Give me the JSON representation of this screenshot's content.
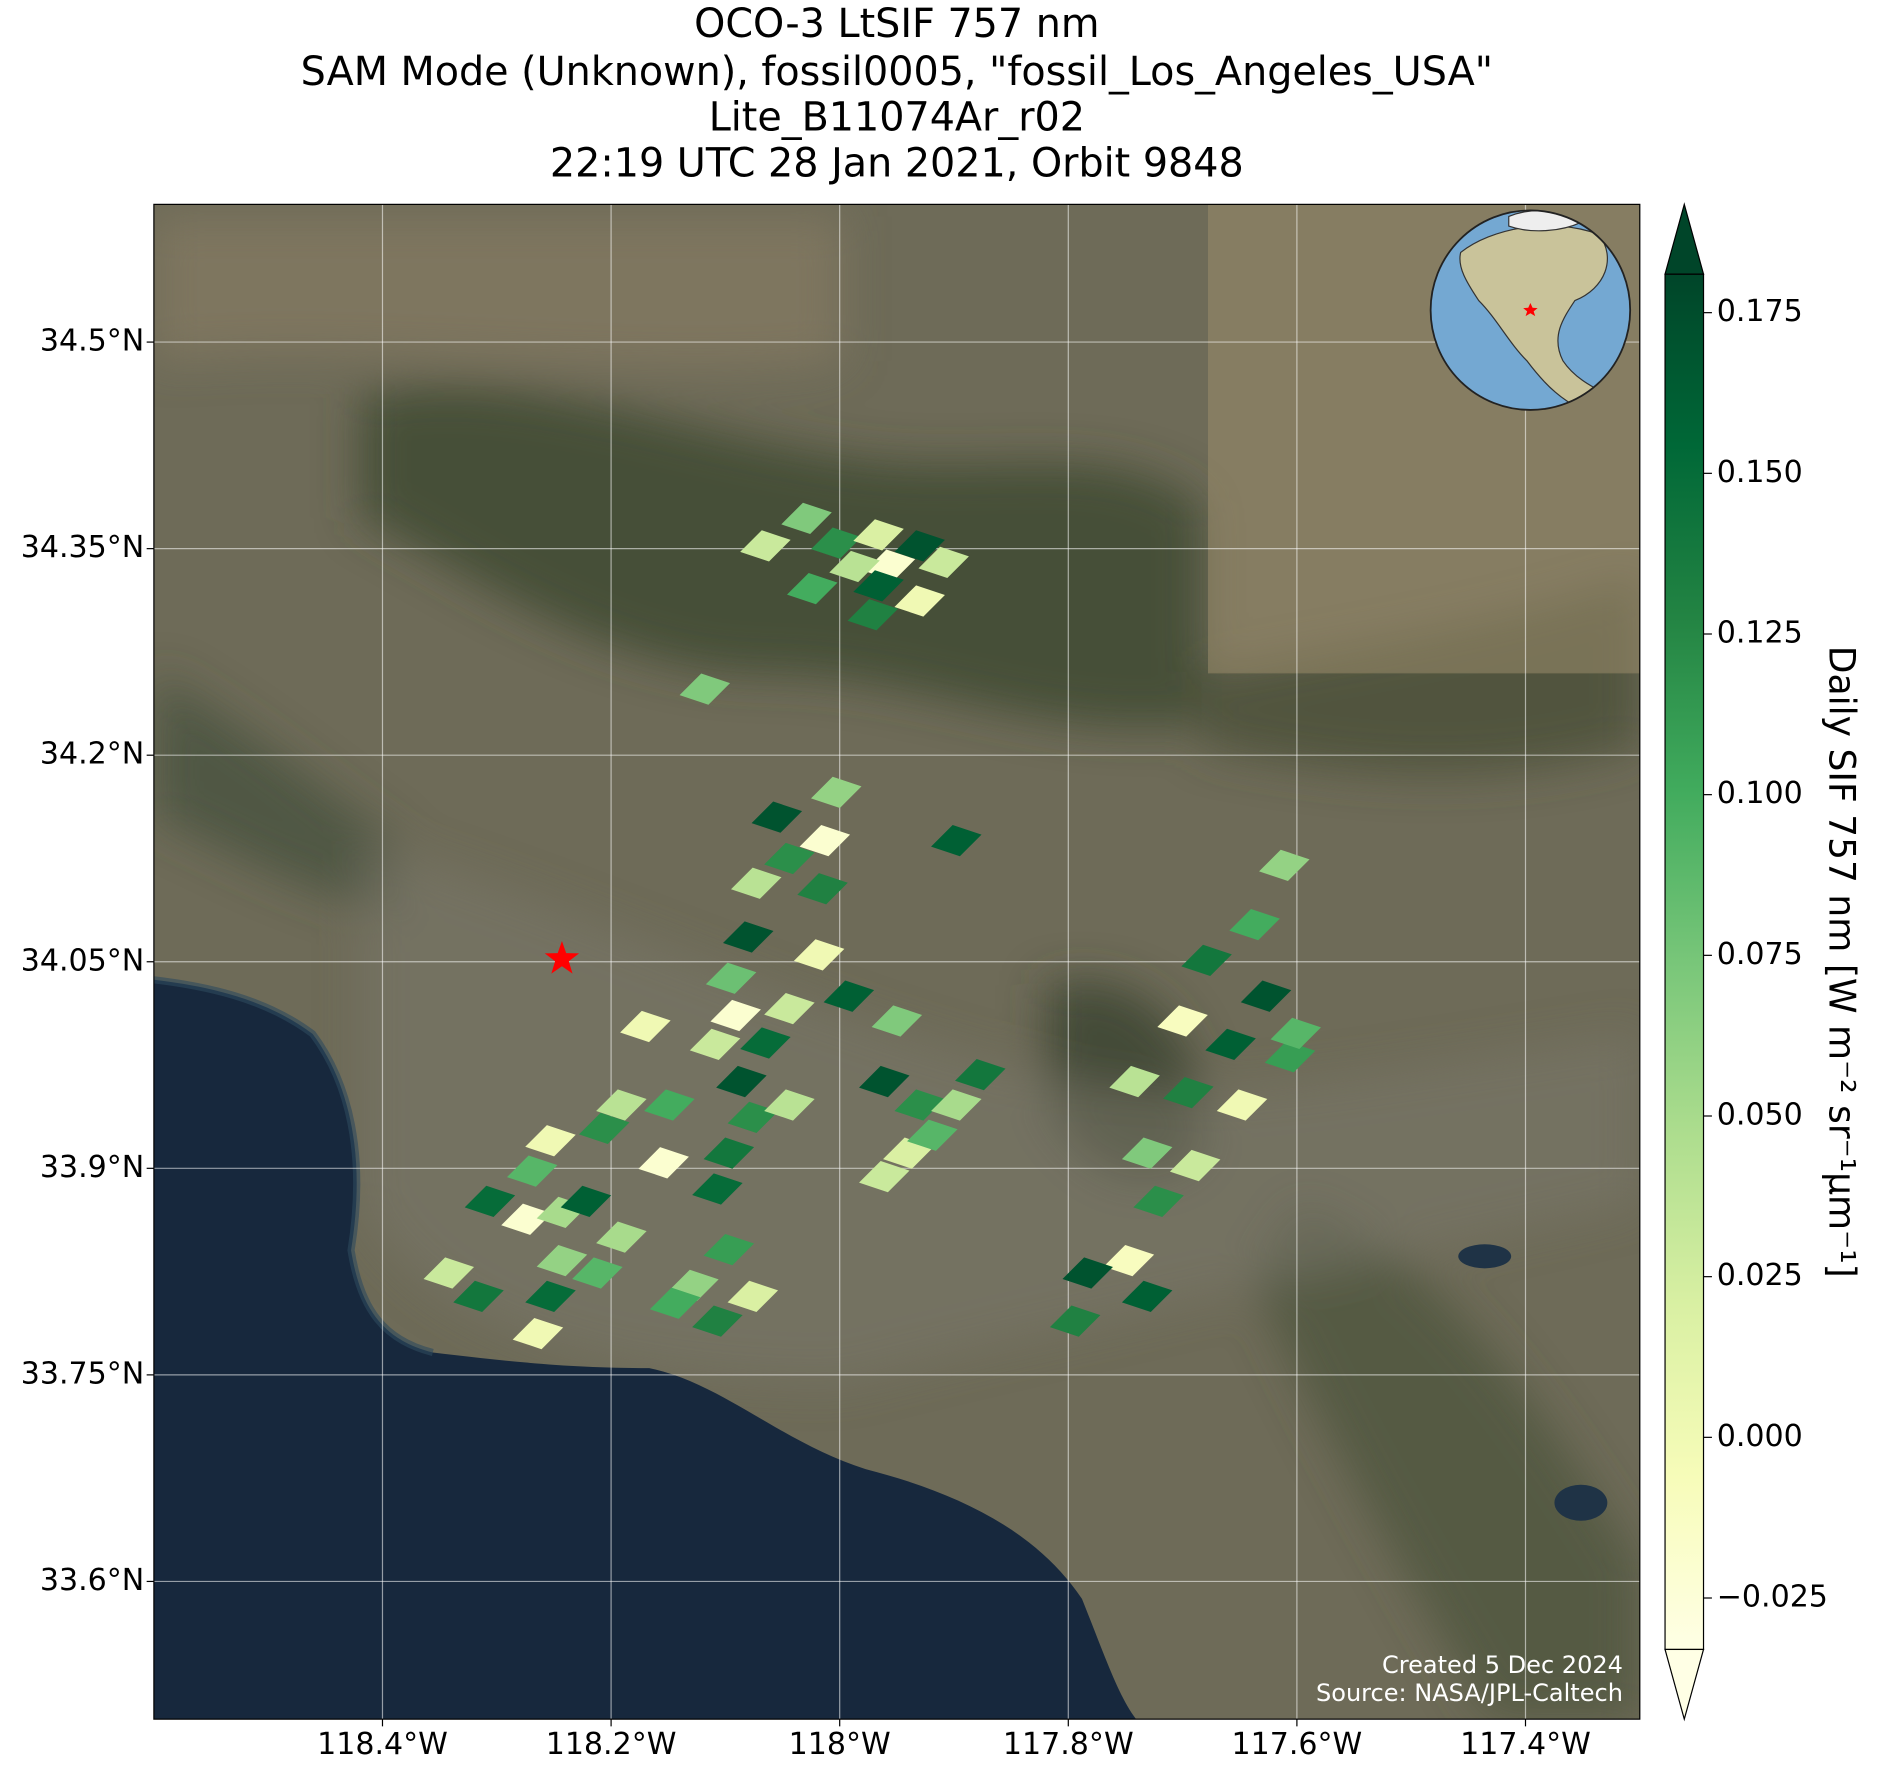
{
  "chart_data": {
    "type": "map",
    "title": [
      "OCO-3 LtSIF 757 nm",
      "SAM Mode (Unknown), fossil0005, \"fossil_Los_Angeles_USA\"",
      "Lite_B11074Ar_r02",
      "22:19 UTC 28 Jan 2021, Orbit 9848"
    ],
    "xlim": [
      -118.6,
      -117.3
    ],
    "xticks": [
      {
        "value": -118.4,
        "label": "118.4°W"
      },
      {
        "value": -118.2,
        "label": "118.2°W"
      },
      {
        "value": -118.0,
        "label": "118°W"
      },
      {
        "value": -117.8,
        "label": "117.8°W"
      },
      {
        "value": -117.6,
        "label": "117.6°W"
      },
      {
        "value": -117.4,
        "label": "117.4°W"
      }
    ],
    "ylim": [
      33.5,
      34.6
    ],
    "yticks": [
      {
        "value": 33.6,
        "label": "33.6°N"
      },
      {
        "value": 33.75,
        "label": "33.75°N"
      },
      {
        "value": 33.9,
        "label": "33.9°N"
      },
      {
        "value": 34.05,
        "label": "34.05°N"
      },
      {
        "value": 34.2,
        "label": "34.2°N"
      },
      {
        "value": 34.35,
        "label": "34.35°N"
      },
      {
        "value": 34.5,
        "label": "34.5°N"
      }
    ],
    "grid": true,
    "site": {
      "lon": -118.243,
      "lat": 34.052,
      "color": "#ff0000"
    },
    "colorbar": {
      "label": "Daily SIF 757 nm [W m⁻² sr⁻¹µm⁻¹]",
      "clim": [
        -0.033,
        0.181
      ],
      "ticks": [
        {
          "value": -0.025,
          "label": "−0.025"
        },
        {
          "value": 0.0,
          "label": "0.000"
        },
        0.025,
        {
          "value": 0.05,
          "label": "0.050"
        },
        0.075,
        {
          "value": 0.1,
          "label": "0.100"
        },
        0.125,
        {
          "value": 0.15,
          "label": "0.150"
        },
        0.175
      ],
      "cmap": [
        "#ffffe5",
        "#f7fcb9",
        "#d9f0a3",
        "#addd8e",
        "#78c679",
        "#41ab5d",
        "#238443",
        "#006837",
        "#004529"
      ],
      "extend": "both"
    },
    "cells": {
      "lon": [
        -118.065,
        -118.029,
        -118.003,
        -117.966,
        -117.93,
        -117.956,
        -117.909,
        -118.024,
        -117.966,
        -117.93,
        -117.971,
        -117.987,
        -118.118,
        -118.003,
        -118.055,
        -118.013,
        -118.044,
        -118.073,
        -118.015,
        -118.08,
        -118.095,
        -118.018,
        -117.992,
        -118.091,
        -118.044,
        -118.109,
        -118.065,
        -117.898,
        -117.611,
        -117.637,
        -117.679,
        -117.627,
        -117.7,
        -117.658,
        -117.606,
        -117.742,
        -117.695,
        -117.648,
        -117.731,
        -117.689,
        -117.601,
        -117.721,
        -117.747,
        -117.731,
        -117.783,
        -117.794,
        -118.17,
        -118.191,
        -118.149,
        -118.206,
        -118.154,
        -118.253,
        -118.269,
        -118.306,
        -118.274,
        -118.243,
        -118.222,
        -118.191,
        -118.243,
        -118.212,
        -118.253,
        -118.264,
        -118.342,
        -118.316,
        -118.107,
        -118.097,
        -118.128,
        -118.107,
        -118.076,
        -118.144,
        -118.086,
        -118.076,
        -118.044,
        -118.097,
        -117.95,
        -117.961,
        -117.93,
        -117.898,
        -117.877,
        -117.94,
        -117.961,
        -117.919
      ],
      "lat": [
        34.352,
        34.372,
        34.354,
        34.36,
        34.352,
        34.338,
        34.34,
        34.321,
        34.323,
        34.312,
        34.302,
        34.337,
        34.248,
        34.173,
        34.155,
        34.138,
        34.125,
        34.107,
        34.103,
        34.068,
        34.038,
        34.055,
        34.025,
        34.011,
        34.016,
        33.99,
        33.991,
        34.138,
        34.12,
        34.077,
        34.051,
        34.025,
        34.007,
        33.99,
        33.981,
        33.963,
        33.955,
        33.946,
        33.911,
        33.902,
        33.998,
        33.876,
        33.833,
        33.807,
        33.824,
        33.789,
        34.003,
        33.946,
        33.946,
        33.929,
        33.904,
        33.92,
        33.898,
        33.876,
        33.863,
        33.868,
        33.876,
        33.85,
        33.833,
        33.824,
        33.807,
        33.78,
        33.824,
        33.807,
        33.885,
        33.841,
        33.815,
        33.789,
        33.807,
        33.802,
        33.963,
        33.937,
        33.946,
        33.911,
        34.007,
        33.963,
        33.946,
        33.946,
        33.968,
        33.911,
        33.894,
        33.924
      ],
      "values": [
        0.03,
        0.07,
        0.12,
        0.02,
        0.17,
        -0.02,
        0.03,
        0.1,
        0.16,
        0.0,
        0.13,
        0.04,
        0.07,
        0.06,
        0.17,
        -0.02,
        0.12,
        0.04,
        0.13,
        0.17,
        0.08,
        0.0,
        0.16,
        -0.02,
        0.03,
        0.03,
        0.15,
        0.16,
        0.06,
        0.1,
        0.14,
        0.17,
        -0.01,
        0.16,
        0.11,
        0.04,
        0.13,
        0.0,
        0.07,
        0.03,
        0.09,
        0.12,
        -0.01,
        0.16,
        0.17,
        0.13,
        0.0,
        0.04,
        0.1,
        0.12,
        -0.02,
        0.0,
        0.09,
        0.15,
        -0.02,
        0.05,
        0.16,
        0.05,
        0.06,
        0.09,
        0.15,
        0.0,
        0.03,
        0.14,
        0.15,
        0.11,
        0.06,
        0.13,
        0.02,
        0.1,
        0.17,
        0.12,
        0.04,
        0.14,
        0.07,
        0.17,
        0.12,
        0.05,
        0.14,
        0.02,
        0.03,
        0.09
      ]
    },
    "credits": [
      "Created 5 Dec 2024",
      "Source: NASA/JPL-Caltech"
    ]
  }
}
